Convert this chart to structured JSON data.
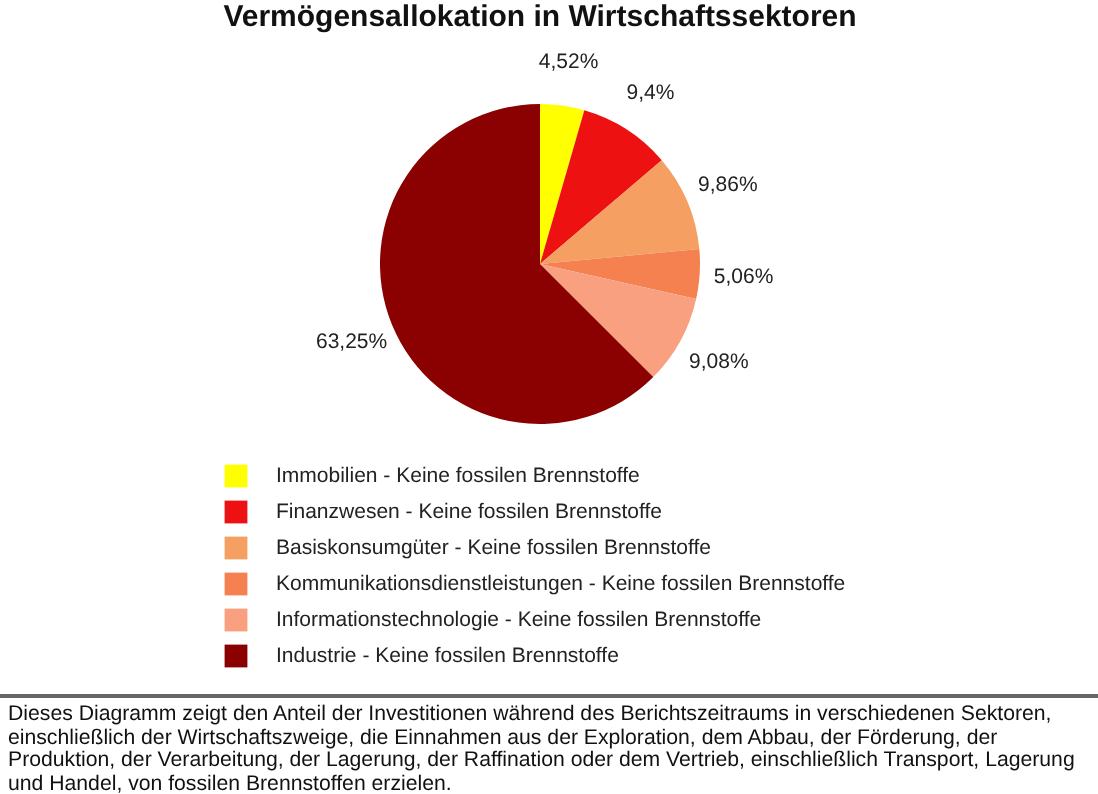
{
  "chart_data": {
    "type": "pie",
    "title": "Vermögensallokation in Wirtschaftssektoren",
    "categories": [
      "Immobilien - Keine fossilen Brennstoffe",
      "Finanzwesen - Keine fossilen Brennstoffe",
      "Basiskonsumgüter - Keine fossilen Brennstoffe",
      "Kommunikationsdienstleistungen - Keine fossilen Brennstoffe",
      "Informationstechnologie - Keine fossilen Brennstoffe",
      "Industrie - Keine fossilen Brennstoffe"
    ],
    "values": [
      4.52,
      9.4,
      9.86,
      5.06,
      9.08,
      63.25
    ],
    "value_labels": [
      "4,52%",
      "9,4%",
      "9,86%",
      "5,06%",
      "9,08%",
      "63,25%"
    ],
    "colors": [
      "#ffff00",
      "#ee1111",
      "#f5a062",
      "#f58050",
      "#f8a080",
      "#8b0000"
    ],
    "legend": "bottom",
    "annotations": [
      "Dieses Diagramm zeigt den Anteil der Investitionen während des Berichtszeitraums in verschiedenen Sektoren, einschließlich der Wirtschaftszweige, die Einnahmen aus der Exploration, dem Abbau, der Förderung, der Produktion, der Verarbeitung, der Lagerung, der Raffination oder dem Vertrieb, einschließlich Transport, Lagerung und Handel, von fossilen Brennstoffen erzielen."
    ]
  }
}
